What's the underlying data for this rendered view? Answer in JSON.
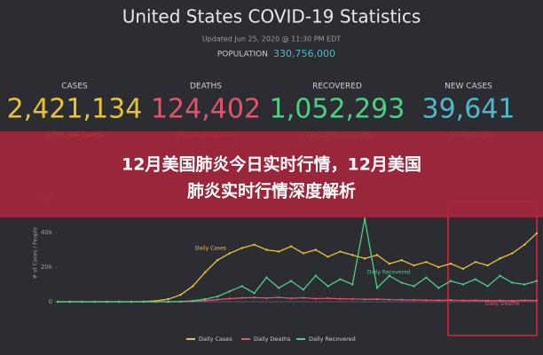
{
  "header": {
    "title": "United States COVID-19 Statistics",
    "updated": "Updated Jun 25, 2020 @ 11:30 PM EDT",
    "population_label": "POPULATION",
    "population": "330,756,000"
  },
  "stats": [
    {
      "label": "CASES",
      "value": "2,421,134",
      "note": "0.73% PER CAPITA",
      "color": "#e8c33a"
    },
    {
      "label": "DEATHS",
      "value": "124,402",
      "note": "0.038% PER CAPITA",
      "color": "#e0556a"
    },
    {
      "label": "RECOVERED",
      "value": "1,052,293",
      "note": "1,344,432 IN RECOVERY",
      "color": "#4fcf84"
    },
    {
      "label": "NEW CASES",
      "value": "39,641",
      "note": "1.6% GROWTH",
      "color": "#4fb8c9"
    }
  ],
  "banner": {
    "line1": "12月美国肺炎今日实时行情，12月美国",
    "line2": "肺炎实时行情深度解析"
  },
  "chart_data": {
    "type": "line",
    "ylabel": "# of Cases / People",
    "categories": [
      null,
      null,
      null,
      null,
      null,
      null,
      null,
      null,
      null,
      null,
      null,
      null,
      null,
      null,
      null,
      null,
      null,
      null,
      null,
      null,
      null,
      null,
      null,
      null,
      null,
      null,
      null,
      null,
      null,
      null,
      null,
      null,
      null,
      null,
      null,
      null,
      null,
      null,
      null,
      null
    ],
    "series": [
      {
        "name": "Daily Cases",
        "color": "#e8c33a",
        "values": [
          0,
          0,
          0,
          0,
          0,
          0,
          0,
          100,
          500,
          1500,
          4000,
          9000,
          17000,
          24000,
          28000,
          31000,
          33000,
          30000,
          29000,
          32000,
          28000,
          30000,
          26000,
          29000,
          27000,
          25000,
          27000,
          22000,
          24000,
          21000,
          23000,
          20000,
          22000,
          19000,
          23000,
          21000,
          25000,
          28000,
          33000,
          39600
        ]
      },
      {
        "name": "Daily Deaths",
        "color": "#e0556a",
        "values": [
          0,
          0,
          0,
          0,
          0,
          0,
          0,
          0,
          0,
          10,
          50,
          200,
          600,
          1200,
          1800,
          2200,
          2400,
          2100,
          2500,
          2000,
          2300,
          1800,
          2000,
          1700,
          1600,
          1400,
          1500,
          1200,
          1100,
          1000,
          900,
          800,
          900,
          700,
          800,
          600,
          700,
          600,
          800,
          700
        ]
      },
      {
        "name": "Daily Recovered",
        "color": "#4fcf84",
        "values": [
          0,
          0,
          0,
          0,
          0,
          0,
          0,
          0,
          0,
          0,
          100,
          500,
          1500,
          3000,
          6000,
          9000,
          5000,
          14000,
          8000,
          12000,
          7000,
          15000,
          9000,
          13000,
          10000,
          48000,
          8000,
          15000,
          11000,
          9000,
          14000,
          8000,
          12000,
          10000,
          13000,
          9000,
          15000,
          11000,
          10000,
          12000
        ]
      }
    ],
    "ylim": [
      0,
      60000
    ],
    "yticks": [
      0,
      {
        "value": 20000,
        "label": "20k"
      },
      {
        "value": 40000,
        "label": "40k"
      },
      {
        "value": 60000,
        "label": "60k"
      }
    ],
    "grid": false
  }
}
